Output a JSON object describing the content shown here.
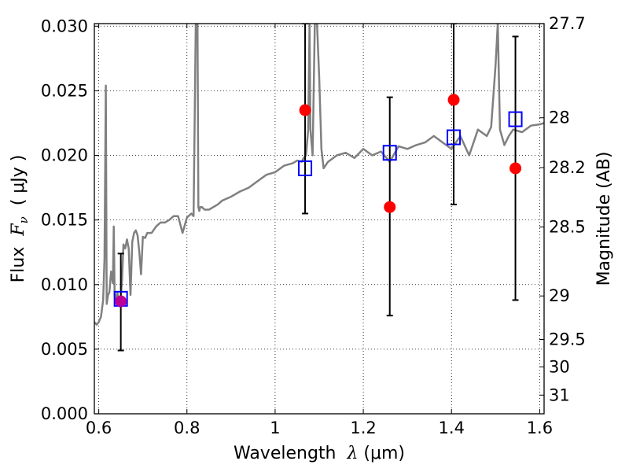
{
  "chart_data": {
    "type": "scatter",
    "xlabel": "Wavelength  λ (μm)",
    "ylabel": "Flux  F_ν  ( μJy )",
    "ylabel_parts": {
      "prefix": "Flux  ",
      "symbol": "F",
      "subscript": "ν",
      "suffix": "  ( μJy )"
    },
    "xlabel_parts": {
      "prefix": "Wavelength  ",
      "symbol": "λ",
      "suffix": " (μm)"
    },
    "y2label": "Magnitude (AB)",
    "xlim": [
      0.59,
      1.61
    ],
    "ylim": [
      0.0,
      0.0302
    ],
    "grid": true,
    "x_ticks": [
      {
        "value": 0.6,
        "label": "0.6"
      },
      {
        "value": 0.8,
        "label": "0.8"
      },
      {
        "value": 1.0,
        "label": "1"
      },
      {
        "value": 1.2,
        "label": "1.2"
      },
      {
        "value": 1.4,
        "label": "1.4"
      },
      {
        "value": 1.6,
        "label": "1.6"
      }
    ],
    "y_ticks": [
      {
        "value": 0.0,
        "label": "0.000"
      },
      {
        "value": 0.005,
        "label": "0.005"
      },
      {
        "value": 0.01,
        "label": "0.010"
      },
      {
        "value": 0.015,
        "label": "0.015"
      },
      {
        "value": 0.02,
        "label": "0.020"
      },
      {
        "value": 0.025,
        "label": "0.025"
      },
      {
        "value": 0.03,
        "label": "0.030"
      }
    ],
    "y2_ticks": [
      {
        "mag": 27.7,
        "label": "27.7"
      },
      {
        "mag": 28.0,
        "label": "28"
      },
      {
        "mag": 28.2,
        "label": "28.2"
      },
      {
        "mag": 28.5,
        "label": "28.5"
      },
      {
        "mag": 29.0,
        "label": "29"
      },
      {
        "mag": 29.5,
        "label": "29.5"
      },
      {
        "mag": 30.0,
        "label": "30"
      },
      {
        "mag": 31.0,
        "label": "31"
      }
    ],
    "series": [
      {
        "kind": "line",
        "color": "#808080",
        "x": [
          0.59,
          0.595,
          0.6,
          0.605,
          0.61,
          0.613,
          0.616,
          0.618,
          0.621,
          0.624,
          0.628,
          0.632,
          0.634,
          0.636,
          0.638,
          0.642,
          0.646,
          0.65,
          0.653,
          0.656,
          0.66,
          0.664,
          0.668,
          0.672,
          0.676,
          0.68,
          0.684,
          0.688,
          0.692,
          0.696,
          0.7,
          0.705,
          0.71,
          0.72,
          0.73,
          0.74,
          0.75,
          0.76,
          0.77,
          0.78,
          0.79,
          0.8,
          0.81,
          0.815,
          0.82,
          0.824,
          0.826,
          0.828,
          0.83,
          0.834,
          0.84,
          0.85,
          0.86,
          0.87,
          0.88,
          0.9,
          0.92,
          0.94,
          0.96,
          0.98,
          1.0,
          1.02,
          1.04,
          1.05,
          1.06,
          1.065,
          1.07,
          1.075,
          1.078,
          1.08,
          1.085,
          1.09,
          1.095,
          1.1,
          1.105,
          1.11,
          1.12,
          1.14,
          1.16,
          1.18,
          1.2,
          1.22,
          1.24,
          1.26,
          1.28,
          1.3,
          1.32,
          1.34,
          1.36,
          1.38,
          1.4,
          1.42,
          1.44,
          1.46,
          1.48,
          1.49,
          1.5,
          1.505,
          1.51,
          1.52,
          1.53,
          1.54,
          1.56,
          1.58,
          1.6,
          1.61
        ],
        "y": [
          0.0071,
          0.0069,
          0.0071,
          0.0075,
          0.0088,
          0.012,
          0.0254,
          0.0085,
          0.0092,
          0.0094,
          0.011,
          0.0101,
          0.0145,
          0.0092,
          0.0088,
          0.0094,
          0.0087,
          0.0089,
          0.0105,
          0.0131,
          0.0128,
          0.0135,
          0.0128,
          0.0092,
          0.0133,
          0.014,
          0.0142,
          0.0138,
          0.0125,
          0.0108,
          0.0137,
          0.0136,
          0.014,
          0.014,
          0.0145,
          0.0148,
          0.0148,
          0.015,
          0.0153,
          0.0153,
          0.014,
          0.0152,
          0.0155,
          0.0153,
          0.0302,
          0.0302,
          0.016,
          0.0157,
          0.016,
          0.016,
          0.0158,
          0.0158,
          0.016,
          0.0162,
          0.0165,
          0.0168,
          0.0172,
          0.0175,
          0.018,
          0.0185,
          0.0187,
          0.0192,
          0.0194,
          0.0196,
          0.0195,
          0.0198,
          0.02,
          0.022,
          0.0302,
          0.022,
          0.02,
          0.0302,
          0.0302,
          0.026,
          0.0205,
          0.019,
          0.0195,
          0.02,
          0.0202,
          0.0198,
          0.0205,
          0.02,
          0.0203,
          0.0195,
          0.0207,
          0.0205,
          0.0208,
          0.021,
          0.0215,
          0.021,
          0.0205,
          0.0215,
          0.02,
          0.022,
          0.0215,
          0.0222,
          0.027,
          0.0302,
          0.022,
          0.0208,
          0.0215,
          0.022,
          0.0218,
          0.0223,
          0.0224,
          0.0225
        ]
      },
      {
        "kind": "errorbar",
        "name": "",
        "color": "#ff0000",
        "x": [
          0.65,
          1.068,
          1.26,
          1.405,
          1.545
        ],
        "y": [
          0.0087,
          0.0235,
          0.016,
          0.0243,
          0.019
        ],
        "yerr_low": [
          0.0049,
          0.0155,
          0.0076,
          0.0162,
          0.0088
        ],
        "yerr_high": [
          0.0124,
          0.0302,
          0.0245,
          0.0302,
          0.0292
        ]
      },
      {
        "kind": "markers",
        "name": "",
        "color": "#0000ff",
        "marker": "square-open",
        "x": [
          0.65,
          1.068,
          1.26,
          1.405,
          1.545
        ],
        "y": [
          0.0089,
          0.019,
          0.0202,
          0.0214,
          0.0228
        ]
      }
    ]
  }
}
